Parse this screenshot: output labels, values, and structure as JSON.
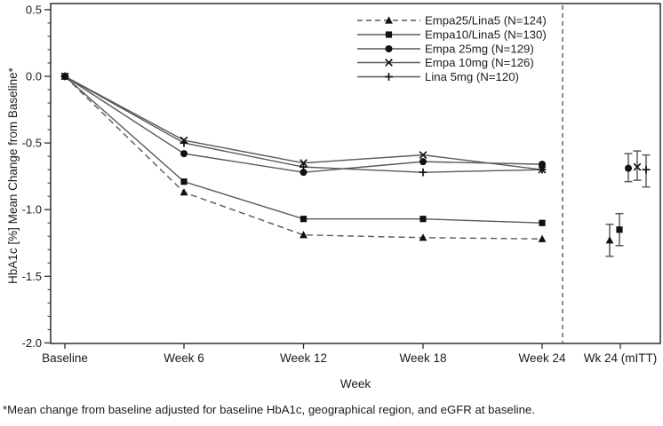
{
  "chart_data": {
    "type": "line",
    "title": "",
    "xlabel": "Week",
    "ylabel": "HbA1c [%] Mean Change from Baseline*",
    "footnote": "*Mean change from baseline adjusted for baseline HbA1c, geographical region, and eGFR at baseline.",
    "categories": [
      "Baseline",
      "Week 6",
      "Week 12",
      "Week 18",
      "Week 24"
    ],
    "mitt_category": "Wk 24 (mITT)",
    "ylim": [
      -2.0,
      0.5
    ],
    "yticks": [
      0.5,
      0.0,
      -0.5,
      -1.0,
      -1.5,
      -2.0
    ],
    "ytick_labels": [
      "0.5",
      "0.0",
      "-0.5",
      "-1.0",
      "-1.5",
      "-2.0"
    ],
    "ytick_minor_step": 0.1,
    "grid": false,
    "legend_position": "top-center-inside",
    "separator": "vertical dashed line between Week 24 and Wk 24 (mITT)",
    "series": [
      {
        "name": "Empa25/Lina5 (N=124)",
        "marker": "triangle",
        "line_style": "dashed",
        "values": [
          0.0,
          -0.87,
          -1.19,
          -1.21,
          -1.22
        ],
        "wk24_mitt": {
          "mean": -1.23,
          "ci_low": -1.35,
          "ci_high": -1.11
        }
      },
      {
        "name": "Empa10/Lina5 (N=130)",
        "marker": "square",
        "line_style": "solid",
        "values": [
          0.0,
          -0.79,
          -1.07,
          -1.07,
          -1.1
        ],
        "wk24_mitt": {
          "mean": -1.15,
          "ci_low": -1.27,
          "ci_high": -1.03
        }
      },
      {
        "name": "Empa 25mg (N=129)",
        "marker": "circle",
        "line_style": "solid",
        "values": [
          0.0,
          -0.58,
          -0.72,
          -0.64,
          -0.66
        ],
        "wk24_mitt": {
          "mean": -0.69,
          "ci_low": -0.79,
          "ci_high": -0.58
        }
      },
      {
        "name": "Empa 10mg (N=126)",
        "marker": "x",
        "line_style": "solid",
        "values": [
          0.0,
          -0.48,
          -0.65,
          -0.59,
          -0.7
        ],
        "wk24_mitt": {
          "mean": -0.68,
          "ci_low": -0.78,
          "ci_high": -0.56
        }
      },
      {
        "name": "Lina 5mg (N=120)",
        "marker": "plus",
        "line_style": "solid",
        "values": [
          0.0,
          -0.5,
          -0.68,
          -0.72,
          -0.7
        ],
        "wk24_mitt": {
          "mean": -0.7,
          "ci_low": -0.83,
          "ci_high": -0.59
        }
      }
    ],
    "colors": {
      "line": "#595959",
      "marker": "#111111",
      "axis": "#2e2e2e",
      "text": "#1c1c1c",
      "error_bar": "#5a5a5a"
    }
  }
}
